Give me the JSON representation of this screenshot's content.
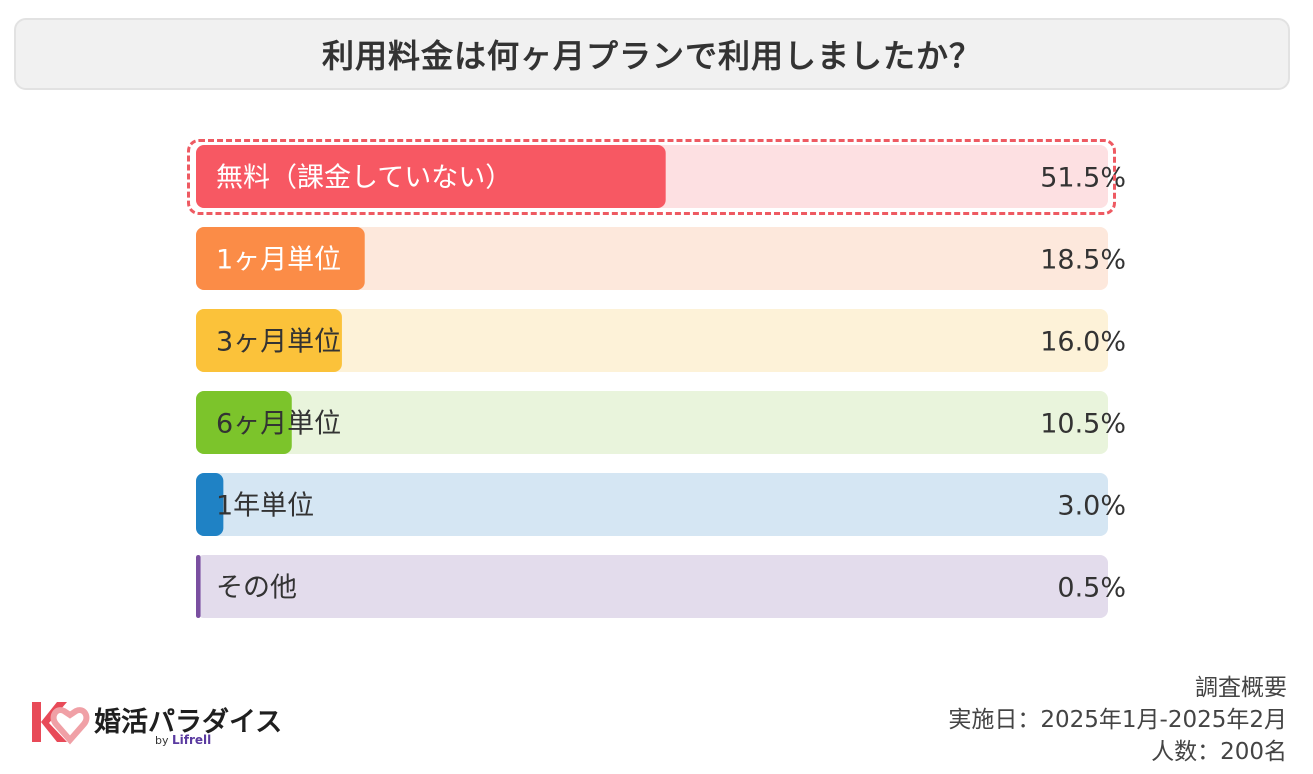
{
  "title": "利用料金は何ヶ月プランで利用しましたか？",
  "chart_data": {
    "type": "bar",
    "orientation": "horizontal",
    "categories": [
      "無料（課金していない）",
      "1ヶ月単位",
      "3ヶ月単位",
      "6ヶ月単位",
      "1年単位",
      "その他"
    ],
    "values": [
      51.5,
      18.5,
      16.0,
      10.5,
      3.0,
      0.5
    ],
    "value_labels": [
      "51.5%",
      "18.5%",
      "16.0%",
      "10.5%",
      "3.0%",
      "0.5%"
    ],
    "xlim": [
      0,
      100
    ],
    "unit": "%",
    "highlighted_index": 0,
    "colors": [
      "#f75863",
      "#fb8c47",
      "#fbc23a",
      "#7cc42b",
      "#1f82c5",
      "#7a4fa0"
    ],
    "track_colors": [
      "#fde0e2",
      "#fde8dc",
      "#fdf2d8",
      "#e9f4dc",
      "#d5e6f3",
      "#e3dcec"
    ],
    "label_colors": [
      "#ffffff",
      "#ffffff",
      "#333333",
      "#333333",
      "#333333",
      "#333333"
    ]
  },
  "logo": {
    "name": "婚活パラダイス",
    "by": "by",
    "brand": "Lifrell",
    "icon": "kp-heart-logo-icon",
    "colors": [
      "#e84a58",
      "#f0a0a6"
    ]
  },
  "survey": {
    "heading": "調査概要",
    "period": "実施日：2025年1月-2025年2月",
    "count": "人数：200名"
  }
}
